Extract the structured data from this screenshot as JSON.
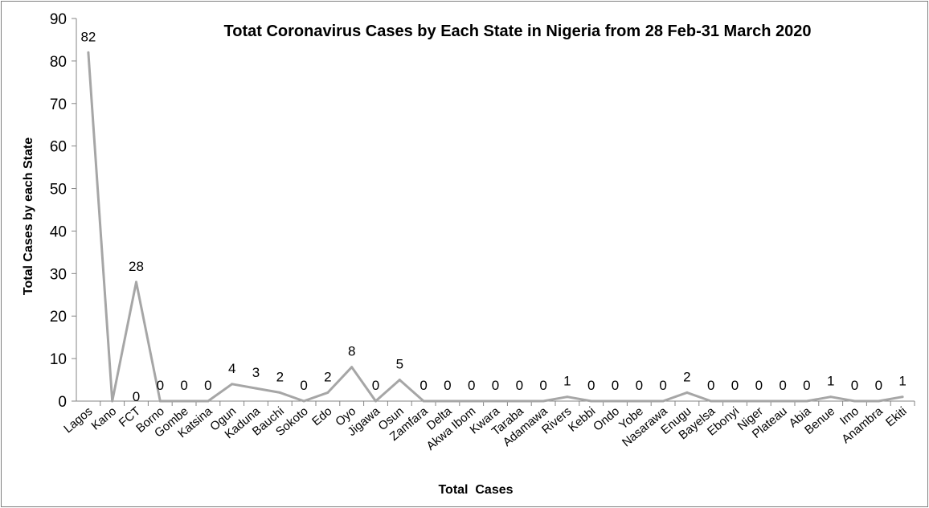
{
  "chart_data": {
    "type": "line",
    "title": "Totat Coronavirus Cases by Each State in Nigeria from 28 Feb-31 March 2020",
    "xlabel": "Total  Cases",
    "ylabel": "Total Cases by each State",
    "ylim": [
      0,
      90
    ],
    "yticks": [
      "0",
      "10",
      "20",
      "30",
      "40",
      "50",
      "60",
      "70",
      "80",
      "90"
    ],
    "grid": false,
    "legend": "none",
    "line_color": "#A6A6A6",
    "categories": [
      "Lagos",
      "Kano",
      "FCT",
      "Borno",
      "Gombe",
      "Katsina",
      "Ogun",
      "Kaduna",
      "Bauchi",
      "Sokoto",
      "Edo",
      "Oyo",
      "Jigawa",
      "Osun",
      "Zamfara",
      "Delta",
      "Akwa Ibom",
      "Kwara",
      "Taraba",
      "Adamawa",
      "Rivers",
      "Kebbi",
      "Ondo",
      "Yobe",
      "Nasarawa",
      "Enugu",
      "Bayelsa",
      "Ebonyi",
      "Niger",
      "Plateau",
      "Abia",
      "Benue",
      "Imo",
      "Anambra",
      "Ekiti"
    ],
    "values": [
      82,
      0,
      28,
      0,
      0,
      0,
      4,
      3,
      2,
      0,
      2,
      8,
      0,
      5,
      0,
      0,
      0,
      0,
      0,
      0,
      1,
      0,
      0,
      0,
      0,
      2,
      0,
      0,
      0,
      0,
      0,
      1,
      0,
      0,
      1
    ],
    "data_labels": [
      "82",
      "0",
      "28",
      "0",
      "0",
      "0",
      "4",
      "3",
      "2",
      "0",
      "2",
      "8",
      "0",
      "5",
      "0",
      "0",
      "0",
      "0",
      "0",
      "0",
      "1",
      "0",
      "0",
      "0",
      "0",
      "2",
      "0",
      "0",
      "0",
      "0",
      "0",
      "1",
      "0",
      "0",
      "1"
    ]
  }
}
